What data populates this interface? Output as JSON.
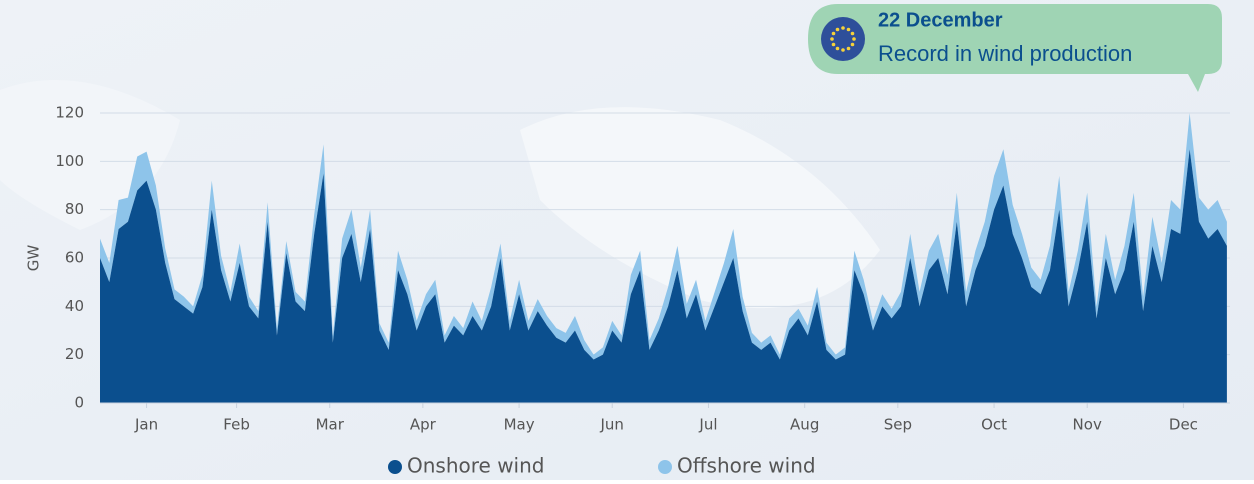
{
  "chart_data": {
    "type": "stacked-area",
    "ylabel": "GW",
    "annotation": {
      "title": "22 December",
      "text": "Record in wind production"
    },
    "x": [
      1,
      4,
      7,
      10,
      13,
      16,
      19,
      22,
      25,
      28,
      31,
      34,
      37,
      40,
      43,
      46,
      49,
      52,
      55,
      58,
      61,
      64,
      67,
      70,
      73,
      76,
      79,
      82,
      85,
      88,
      91,
      94,
      97,
      100,
      103,
      106,
      109,
      112,
      115,
      118,
      121,
      124,
      127,
      130,
      133,
      136,
      139,
      142,
      145,
      148,
      151,
      154,
      157,
      160,
      163,
      166,
      169,
      172,
      175,
      178,
      181,
      184,
      187,
      190,
      193,
      196,
      199,
      202,
      205,
      208,
      211,
      214,
      217,
      220,
      223,
      226,
      229,
      232,
      235,
      238,
      241,
      244,
      247,
      250,
      253,
      256,
      259,
      262,
      265,
      268,
      271,
      274,
      277,
      280,
      283,
      286,
      289,
      292,
      295,
      298,
      301,
      304,
      307,
      310,
      313,
      316,
      319,
      322,
      325,
      328,
      331,
      334,
      337,
      340,
      343,
      346,
      349,
      352,
      355,
      358,
      361,
      364
    ],
    "xlim": [
      1,
      365
    ],
    "xticks": [
      {
        "value": 16,
        "label": "Jan"
      },
      {
        "value": 45,
        "label": "Feb"
      },
      {
        "value": 75,
        "label": "Mar"
      },
      {
        "value": 105,
        "label": "Apr"
      },
      {
        "value": 136,
        "label": "May"
      },
      {
        "value": 166,
        "label": "Jun"
      },
      {
        "value": 197,
        "label": "Jul"
      },
      {
        "value": 228,
        "label": "Aug"
      },
      {
        "value": 258,
        "label": "Sep"
      },
      {
        "value": 289,
        "label": "Oct"
      },
      {
        "value": 319,
        "label": "Nov"
      },
      {
        "value": 350,
        "label": "Dec"
      }
    ],
    "ylim": [
      0,
      120
    ],
    "yticks": [
      0,
      20,
      40,
      60,
      80,
      100,
      120
    ],
    "grid": true,
    "series": [
      {
        "name": "Onshore wind",
        "color": "#0b4f8e",
        "values": [
          60,
          50,
          72,
          75,
          88,
          92,
          80,
          58,
          43,
          40,
          37,
          48,
          80,
          55,
          42,
          58,
          40,
          35,
          75,
          28,
          62,
          42,
          38,
          70,
          95,
          25,
          60,
          70,
          50,
          72,
          30,
          22,
          55,
          45,
          30,
          40,
          45,
          25,
          32,
          28,
          36,
          30,
          40,
          60,
          30,
          45,
          30,
          38,
          32,
          27,
          25,
          30,
          22,
          18,
          20,
          30,
          25,
          45,
          55,
          22,
          30,
          40,
          55,
          35,
          45,
          30,
          40,
          50,
          60,
          38,
          25,
          22,
          25,
          18,
          30,
          35,
          28,
          42,
          22,
          18,
          20,
          55,
          45,
          30,
          40,
          35,
          40,
          60,
          40,
          55,
          60,
          45,
          75,
          40,
          55,
          65,
          80,
          90,
          70,
          60,
          48,
          45,
          55,
          80,
          40,
          55,
          75,
          35,
          60,
          45,
          55,
          75,
          38,
          65,
          50,
          72,
          70,
          105,
          75,
          68,
          72,
          65
        ]
      },
      {
        "name": "Offshore wind",
        "color": "#8ec4ea",
        "values": [
          8,
          8,
          12,
          10,
          14,
          12,
          10,
          6,
          4,
          4,
          3,
          5,
          12,
          6,
          4,
          8,
          4,
          3,
          8,
          3,
          5,
          4,
          4,
          8,
          12,
          3,
          8,
          10,
          6,
          8,
          3,
          3,
          8,
          6,
          4,
          5,
          6,
          3,
          4,
          3,
          6,
          4,
          8,
          6,
          4,
          6,
          4,
          5,
          4,
          4,
          4,
          6,
          4,
          2,
          3,
          4,
          3,
          8,
          8,
          4,
          5,
          8,
          10,
          6,
          6,
          4,
          6,
          8,
          12,
          6,
          4,
          3,
          3,
          2,
          5,
          4,
          4,
          6,
          3,
          2,
          3,
          8,
          6,
          4,
          5,
          4,
          6,
          10,
          6,
          8,
          10,
          8,
          12,
          6,
          8,
          10,
          14,
          15,
          12,
          10,
          8,
          6,
          10,
          14,
          6,
          8,
          12,
          5,
          10,
          6,
          10,
          12,
          6,
          12,
          8,
          12,
          10,
          15,
          10,
          12,
          12,
          10
        ]
      }
    ]
  }
}
